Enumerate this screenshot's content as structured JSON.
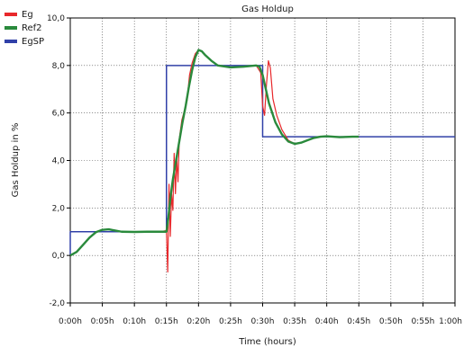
{
  "chart_data": {
    "type": "line",
    "title": "Gas Holdup",
    "xlabel": "Time (hours)",
    "ylabel": "Gas Holdup in %",
    "x_unit": "minutes",
    "xlim": [
      0,
      60
    ],
    "ylim": [
      -2,
      10
    ],
    "x_ticks": [
      0,
      5,
      10,
      15,
      20,
      25,
      30,
      35,
      40,
      45,
      50,
      55,
      60
    ],
    "x_tick_labels": [
      "0:00h",
      "0:05h",
      "0:10h",
      "0:15h",
      "0:20h",
      "0:25h",
      "0:30h",
      "0:35h",
      "0:40h",
      "0:45h",
      "0:50h",
      "0:55h",
      "1:00h"
    ],
    "y_ticks": [
      -2,
      0,
      2,
      4,
      6,
      8,
      10
    ],
    "y_tick_labels": [
      "-2,0",
      "0,0",
      "2,0",
      "4,0",
      "6,0",
      "8,0",
      "10,0"
    ],
    "grid": true,
    "legend_position": "top-left",
    "series": [
      {
        "name": "Eg",
        "color": "#e8282b",
        "points": [
          [
            0,
            0
          ],
          [
            1,
            0.15
          ],
          [
            2,
            0.45
          ],
          [
            3,
            0.75
          ],
          [
            4,
            0.98
          ],
          [
            5,
            1.08
          ],
          [
            6,
            1.1
          ],
          [
            7,
            1.05
          ],
          [
            8,
            1.0
          ],
          [
            10,
            0.99
          ],
          [
            12,
            1.0
          ],
          [
            14,
            1.0
          ],
          [
            15,
            1.05
          ],
          [
            15.2,
            -0.7
          ],
          [
            15.4,
            3.0
          ],
          [
            15.6,
            0.8
          ],
          [
            15.8,
            2.6
          ],
          [
            16,
            1.9
          ],
          [
            16.2,
            4.3
          ],
          [
            16.4,
            2.6
          ],
          [
            16.6,
            4.1
          ],
          [
            16.8,
            3.1
          ],
          [
            17,
            4.9
          ],
          [
            17.4,
            5.7
          ],
          [
            17.8,
            6.1
          ],
          [
            18.2,
            6.5
          ],
          [
            18.6,
            7.6
          ],
          [
            19,
            8.1
          ],
          [
            19.5,
            8.5
          ],
          [
            20,
            8.65
          ],
          [
            20.5,
            8.6
          ],
          [
            21,
            8.45
          ],
          [
            22,
            8.2
          ],
          [
            23,
            8.0
          ],
          [
            25,
            7.92
          ],
          [
            27,
            7.95
          ],
          [
            29,
            8.0
          ],
          [
            29.7,
            7.7
          ],
          [
            30,
            6.3
          ],
          [
            30.3,
            5.9
          ],
          [
            30.6,
            7.2
          ],
          [
            30.9,
            8.2
          ],
          [
            31.2,
            7.9
          ],
          [
            31.6,
            6.6
          ],
          [
            32.2,
            5.9
          ],
          [
            33,
            5.3
          ],
          [
            34,
            4.85
          ],
          [
            35,
            4.7
          ],
          [
            36,
            4.75
          ],
          [
            37,
            4.85
          ],
          [
            38,
            4.95
          ],
          [
            39,
            5.0
          ],
          [
            40,
            5.02
          ],
          [
            41,
            5.0
          ],
          [
            42,
            4.98
          ],
          [
            43,
            4.99
          ],
          [
            44,
            5.0
          ],
          [
            45,
            5.0
          ]
        ]
      },
      {
        "name": "Ref2",
        "color": "#2a8a3c",
        "points": [
          [
            0,
            0
          ],
          [
            1,
            0.15
          ],
          [
            2,
            0.45
          ],
          [
            3,
            0.75
          ],
          [
            4,
            0.98
          ],
          [
            5,
            1.08
          ],
          [
            6,
            1.1
          ],
          [
            7,
            1.05
          ],
          [
            8,
            1.0
          ],
          [
            10,
            0.99
          ],
          [
            12,
            1.0
          ],
          [
            14,
            1.0
          ],
          [
            15,
            1.0
          ],
          [
            15.3,
            1.6
          ],
          [
            15.6,
            2.4
          ],
          [
            16,
            3.2
          ],
          [
            16.5,
            4.0
          ],
          [
            17,
            4.8
          ],
          [
            17.5,
            5.6
          ],
          [
            18,
            6.3
          ],
          [
            18.5,
            7.1
          ],
          [
            19,
            7.8
          ],
          [
            19.5,
            8.35
          ],
          [
            20,
            8.65
          ],
          [
            20.5,
            8.6
          ],
          [
            21,
            8.45
          ],
          [
            22,
            8.2
          ],
          [
            23,
            8.0
          ],
          [
            25,
            7.92
          ],
          [
            27,
            7.95
          ],
          [
            29,
            8.0
          ],
          [
            29.5,
            7.95
          ],
          [
            30,
            7.6
          ],
          [
            30.5,
            7.0
          ],
          [
            31,
            6.4
          ],
          [
            31.5,
            6.0
          ],
          [
            32,
            5.6
          ],
          [
            33,
            5.1
          ],
          [
            34,
            4.8
          ],
          [
            35,
            4.7
          ],
          [
            36,
            4.75
          ],
          [
            37,
            4.85
          ],
          [
            38,
            4.95
          ],
          [
            39,
            5.0
          ],
          [
            40,
            5.02
          ],
          [
            41,
            5.0
          ],
          [
            42,
            4.98
          ],
          [
            43,
            4.99
          ],
          [
            44,
            5.0
          ],
          [
            45,
            5.0
          ]
        ]
      },
      {
        "name": "EgSP",
        "color": "#3040a8",
        "points": [
          [
            0,
            0
          ],
          [
            0,
            1
          ],
          [
            15,
            1
          ],
          [
            15,
            8
          ],
          [
            30,
            8
          ],
          [
            30,
            5
          ],
          [
            60,
            5
          ]
        ]
      }
    ]
  }
}
